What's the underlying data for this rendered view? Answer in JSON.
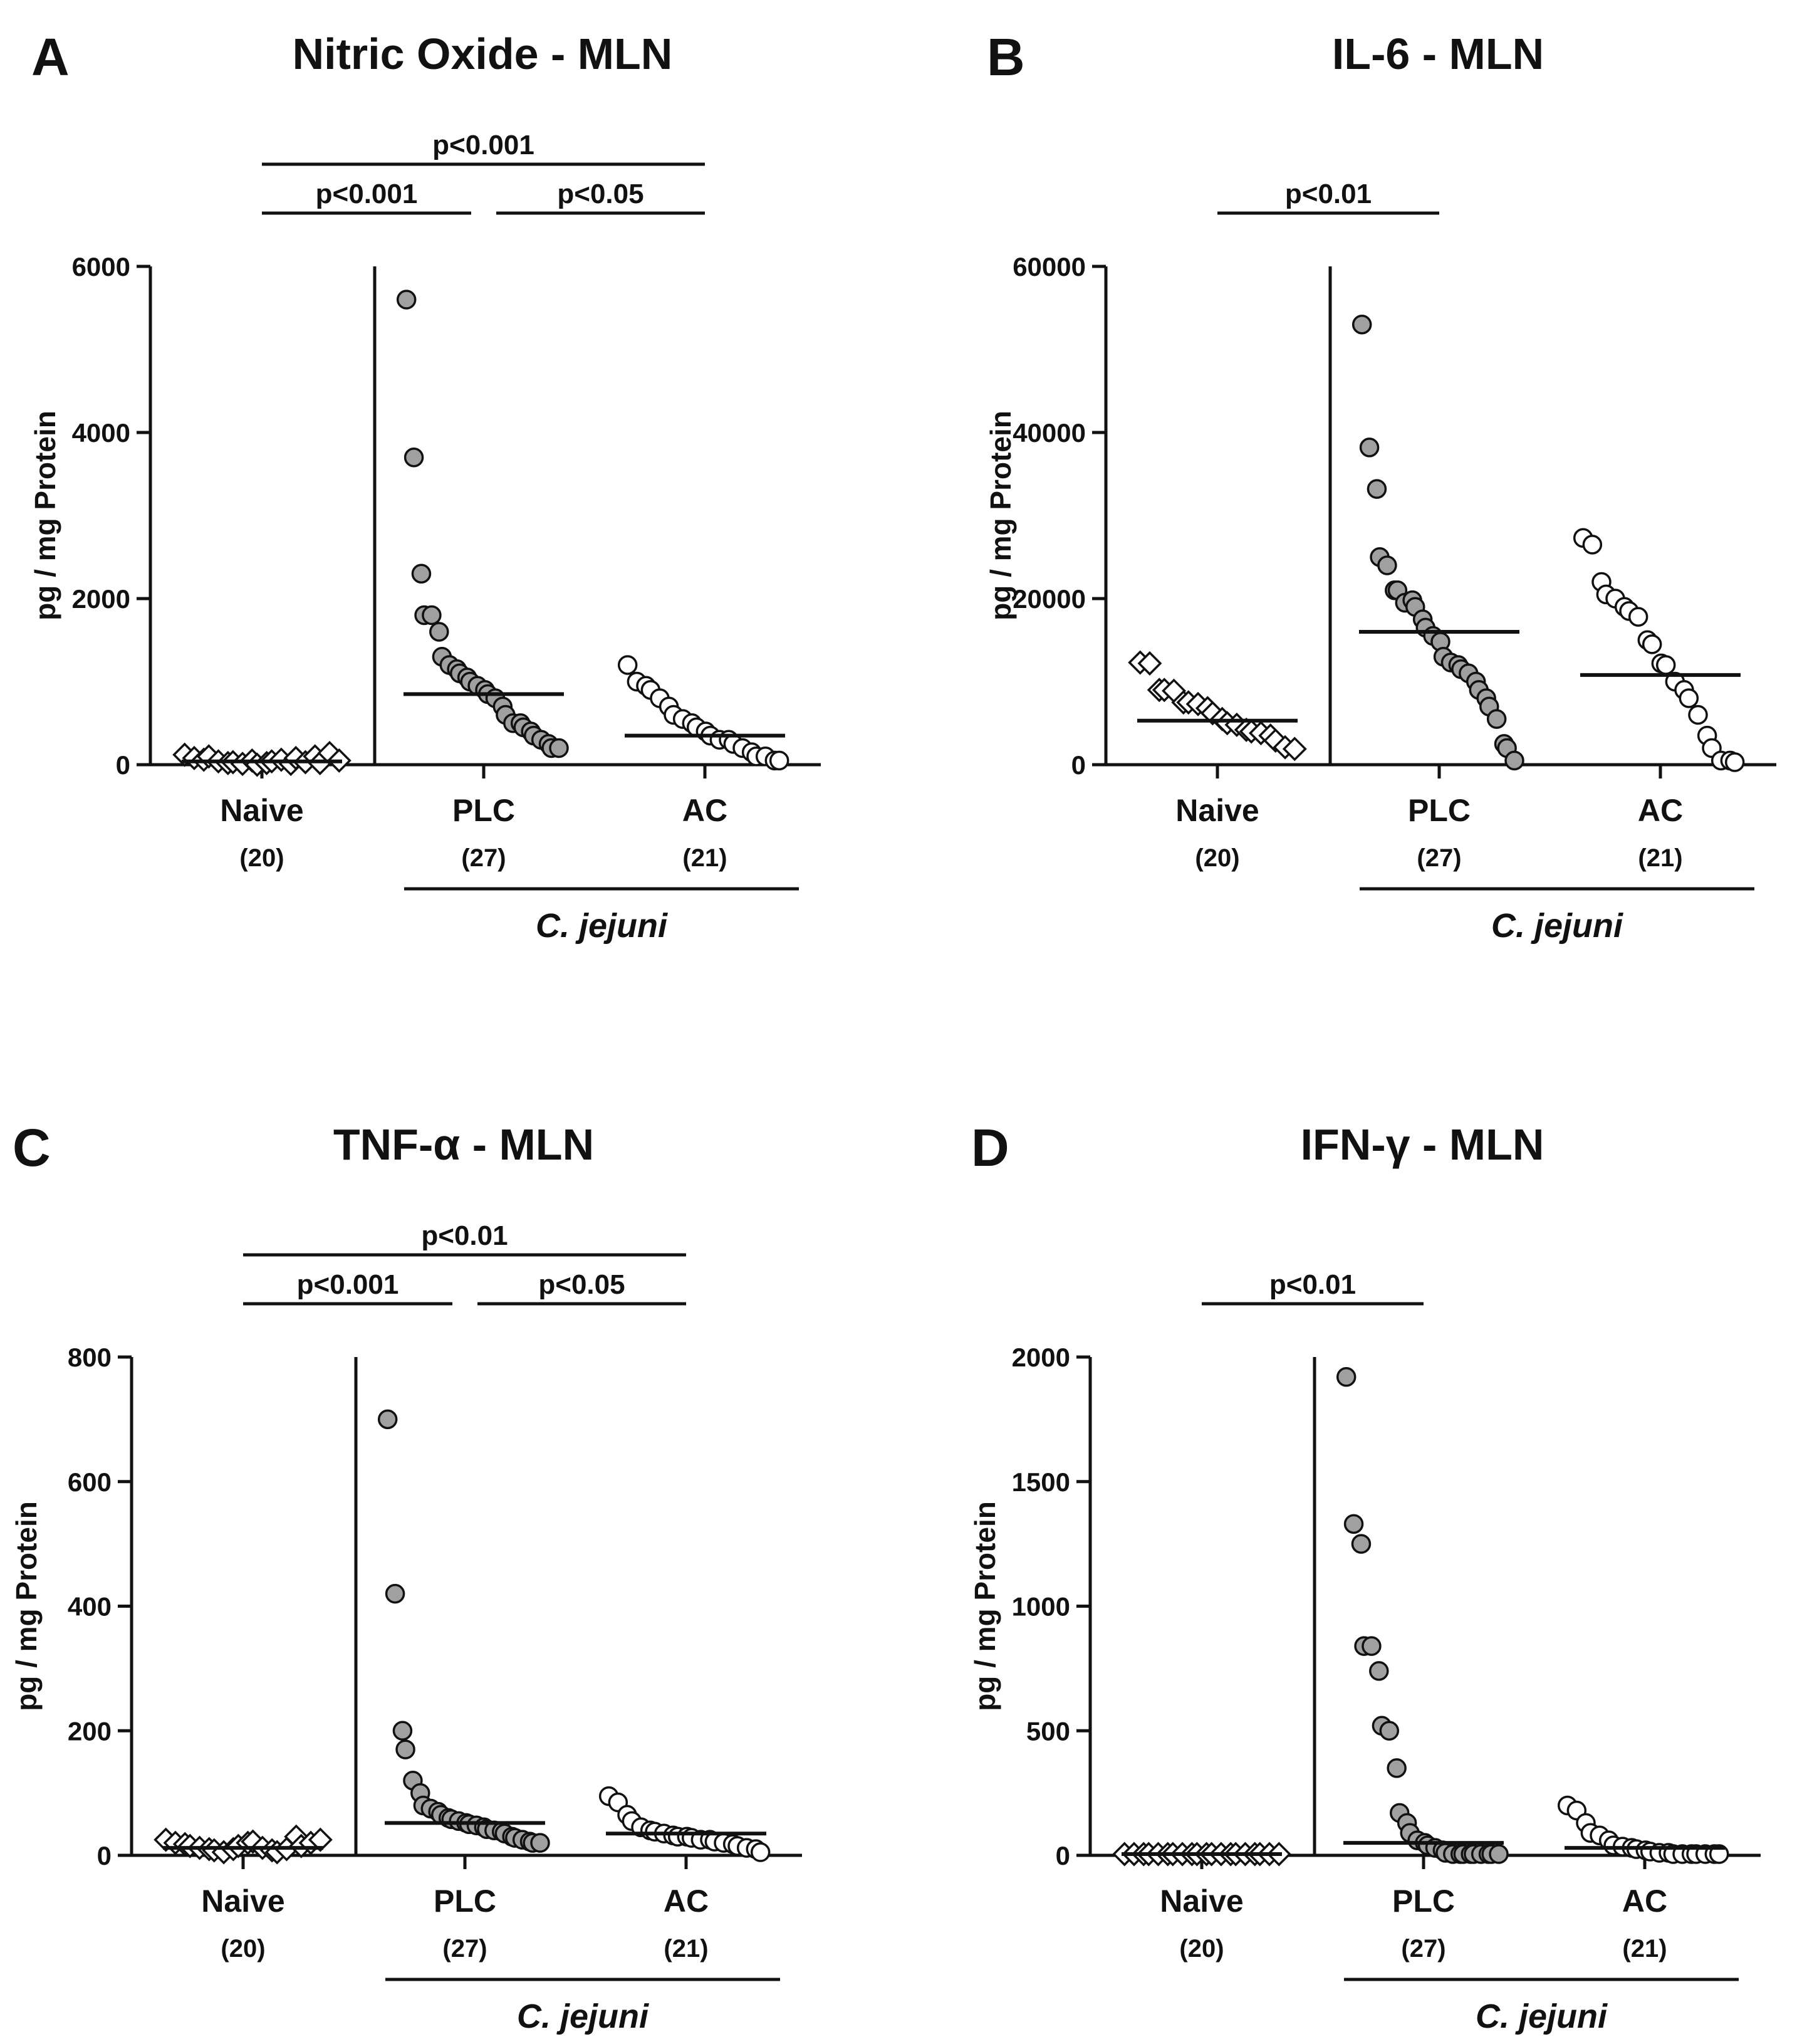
{
  "figure": {
    "group_label": "C. jejuni",
    "ylabel": "pg / mg Protein"
  },
  "chart_data": [
    {
      "panel": "A",
      "type": "scatter",
      "title": "Nitric Oxide - MLN",
      "ylabel": "pg / mg Protein",
      "ylim": [
        0,
        6000
      ],
      "yticks": [
        0,
        2000,
        4000,
        6000
      ],
      "ytick_labels": [
        "0",
        "2000",
        "4000",
        "6000"
      ],
      "group_label": "C. jejuni",
      "categories": [
        "Naive",
        "PLC",
        "AC"
      ],
      "counts": [
        "(20)",
        "(27)",
        "(21)"
      ],
      "markers": [
        "diamond-open",
        "circle-gray",
        "circle-open"
      ],
      "medians": [
        40,
        850,
        350
      ],
      "series": [
        {
          "name": "Naive",
          "values": [
            120,
            80,
            60,
            100,
            40,
            20,
            30,
            10,
            50,
            0,
            20,
            40,
            60,
            10,
            80,
            30,
            100,
            20,
            140,
            50
          ]
        },
        {
          "name": "PLC",
          "values": [
            5600,
            3700,
            2300,
            1800,
            1800,
            1600,
            1300,
            1200,
            1150,
            1100,
            1050,
            1000,
            950,
            900,
            850,
            800,
            700,
            600,
            500,
            500,
            450,
            400,
            350,
            300,
            250,
            200,
            200
          ]
        },
        {
          "name": "AC",
          "values": [
            1200,
            1000,
            950,
            900,
            800,
            700,
            600,
            550,
            500,
            450,
            400,
            350,
            300,
            300,
            250,
            200,
            150,
            100,
            100,
            50,
            50
          ]
        }
      ],
      "comparisons": [
        {
          "label": "p<0.001",
          "from": 0,
          "to": 2,
          "level": 2
        },
        {
          "label": "p<0.001",
          "from": 0,
          "to": 1,
          "level": 1
        },
        {
          "label": "p<0.05",
          "from": 1,
          "to": 2,
          "level": 1
        }
      ]
    },
    {
      "panel": "B",
      "type": "scatter",
      "title": "IL-6 - MLN",
      "ylabel": "pg / mg Protein",
      "ylim": [
        0,
        60000
      ],
      "yticks": [
        0,
        20000,
        40000,
        60000
      ],
      "ytick_labels": [
        "0",
        "20000",
        "40000",
        "60000"
      ],
      "group_label": "C. jejuni",
      "categories": [
        "Naive",
        "PLC",
        "AC"
      ],
      "counts": [
        "(20)",
        "(27)",
        "(21)"
      ],
      "markers": [
        "diamond-open",
        "circle-gray",
        "circle-open"
      ],
      "medians": [
        5300,
        16000,
        10800
      ],
      "series": [
        {
          "name": "Naive",
          "values": [
            12300,
            12200,
            9000,
            9000,
            8900,
            7500,
            7500,
            7300,
            6800,
            6200,
            5500,
            5000,
            4800,
            4200,
            4000,
            3800,
            3500,
            2900,
            2100,
            1900
          ]
        },
        {
          "name": "PLC",
          "values": [
            53000,
            38200,
            33200,
            25000,
            24000,
            21000,
            21000,
            19500,
            19800,
            19000,
            17500,
            16500,
            15500,
            14800,
            13000,
            12300,
            12000,
            11500,
            11000,
            10000,
            9000,
            8000,
            7000,
            5500,
            2500,
            2000,
            500
          ]
        },
        {
          "name": "AC",
          "values": [
            27300,
            26500,
            22000,
            20500,
            20000,
            19000,
            18500,
            17800,
            15000,
            14500,
            12200,
            12000,
            10000,
            9000,
            8000,
            6000,
            3500,
            2000,
            500,
            500,
            300
          ]
        }
      ],
      "comparisons": [
        {
          "label": "p<0.01",
          "from": 0,
          "to": 1,
          "level": 1
        }
      ]
    },
    {
      "panel": "C",
      "type": "scatter",
      "title": "TNF-α - MLN",
      "ylabel": "pg / mg Protein",
      "ylim": [
        0,
        800
      ],
      "yticks": [
        0,
        200,
        400,
        600,
        800
      ],
      "ytick_labels": [
        "0",
        "200",
        "400",
        "600",
        "800"
      ],
      "group_label": "C. jejuni",
      "categories": [
        "Naive",
        "PLC",
        "AC"
      ],
      "counts": [
        "(20)",
        "(27)",
        "(21)"
      ],
      "markers": [
        "diamond-open",
        "circle-gray",
        "circle-open"
      ],
      "medians": [
        12,
        52,
        35
      ],
      "series": [
        {
          "name": "Naive",
          "values": [
            25,
            20,
            18,
            15,
            12,
            10,
            8,
            5,
            10,
            15,
            20,
            22,
            12,
            8,
            5,
            10,
            30,
            15,
            20,
            25
          ]
        },
        {
          "name": "PLC",
          "values": [
            700,
            420,
            200,
            170,
            120,
            100,
            80,
            75,
            70,
            65,
            60,
            58,
            55,
            52,
            50,
            48,
            45,
            42,
            40,
            38,
            35,
            30,
            28,
            25,
            22,
            20,
            20
          ]
        },
        {
          "name": "AC",
          "values": [
            95,
            85,
            65,
            55,
            45,
            40,
            38,
            35,
            32,
            30,
            30,
            28,
            25,
            25,
            22,
            20,
            18,
            15,
            12,
            10,
            5
          ]
        }
      ],
      "comparisons": [
        {
          "label": "p<0.01",
          "from": 0,
          "to": 2,
          "level": 2
        },
        {
          "label": "p<0.001",
          "from": 0,
          "to": 1,
          "level": 1
        },
        {
          "label": "p<0.05",
          "from": 1,
          "to": 2,
          "level": 1
        }
      ]
    },
    {
      "panel": "D",
      "type": "scatter",
      "title": "IFN-γ - MLN",
      "ylabel": "pg / mg Protein",
      "ylim": [
        0,
        2000
      ],
      "yticks": [
        0,
        500,
        1000,
        1500,
        2000
      ],
      "ytick_labels": [
        "0",
        "500",
        "1000",
        "1500",
        "2000"
      ],
      "group_label": "C. jejuni",
      "categories": [
        "Naive",
        "PLC",
        "AC"
      ],
      "counts": [
        "(20)",
        "(27)",
        "(21)"
      ],
      "markers": [
        "diamond-open",
        "circle-gray",
        "circle-open"
      ],
      "medians": [
        5,
        50,
        30
      ],
      "series": [
        {
          "name": "Naive",
          "values": [
            5,
            5,
            5,
            5,
            5,
            5,
            5,
            5,
            5,
            5,
            5,
            5,
            5,
            5,
            5,
            5,
            5,
            5,
            5,
            5
          ]
        },
        {
          "name": "PLC",
          "values": [
            1920,
            1330,
            1250,
            840,
            840,
            740,
            520,
            500,
            350,
            170,
            130,
            90,
            60,
            50,
            40,
            30,
            20,
            10,
            5,
            5,
            5,
            5,
            5,
            5,
            5,
            5,
            5
          ]
        },
        {
          "name": "AC",
          "values": [
            200,
            180,
            130,
            90,
            80,
            60,
            40,
            35,
            30,
            25,
            20,
            15,
            10,
            10,
            5,
            5,
            5,
            5,
            5,
            5,
            5
          ]
        }
      ],
      "comparisons": [
        {
          "label": "p<0.01",
          "from": 0,
          "to": 1,
          "level": 1
        }
      ]
    }
  ]
}
